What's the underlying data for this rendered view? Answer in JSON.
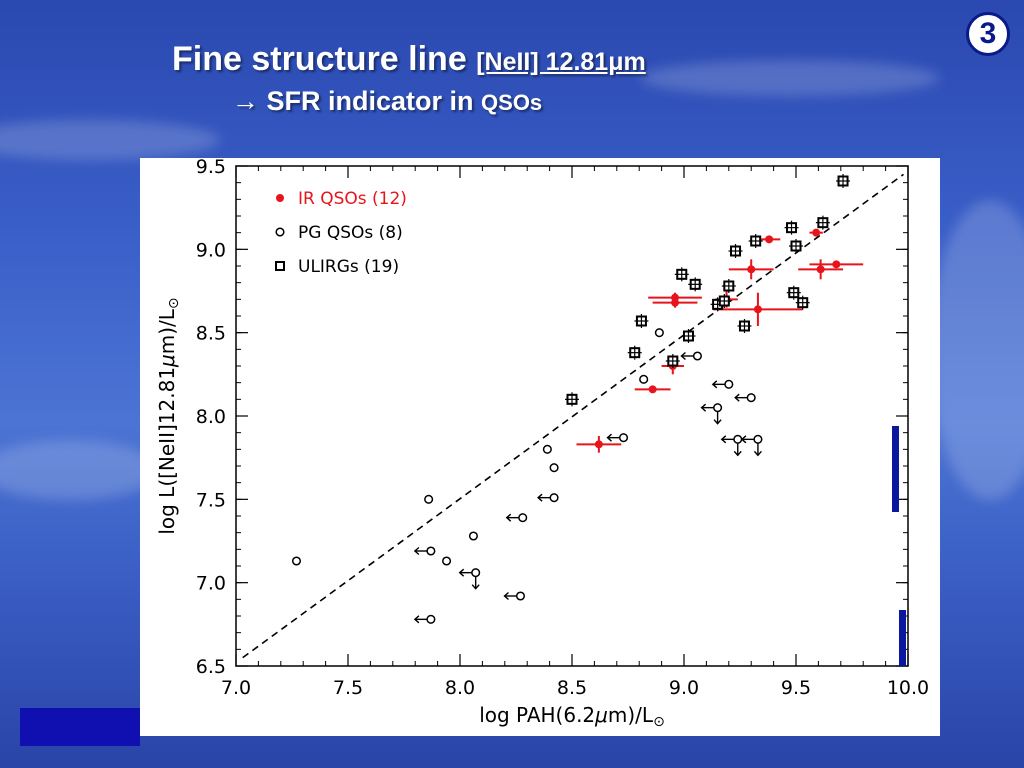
{
  "slide": {
    "title_main": "Fine structure line ",
    "title_line": "[NeII] 12.81μm",
    "subtitle_arrow": "→",
    "subtitle_text": "SFR indicator in ",
    "subtitle_qso": "QSOs",
    "badge": "3"
  },
  "colors": {
    "ir": "#e8141c",
    "pg": "#000000",
    "ulirg": "#000000",
    "marker_bar": "#0a18a0"
  },
  "chart_data": {
    "type": "scatter",
    "title": "",
    "xlabel_pre": "log PAH(6.2",
    "xlabel_mu": "μ",
    "xlabel_post": "m)/L",
    "xlabel_sun": "⊙",
    "ylabel_pre": "log L([NeII]12.81",
    "ylabel_mu": "μ",
    "ylabel_post": "m)/L",
    "ylabel_sun": "⊙",
    "xlim": [
      7.0,
      10.0
    ],
    "ylim": [
      6.5,
      9.5
    ],
    "xticks": [
      "7.0",
      "7.5",
      "8.0",
      "8.5",
      "9.0",
      "9.5",
      "10.0"
    ],
    "yticks": [
      "6.5",
      "7.0",
      "7.5",
      "8.0",
      "8.5",
      "9.0",
      "9.5"
    ],
    "legend_position": "top-left",
    "legend": [
      {
        "marker": "filled-circle",
        "label": "IR QSOs (12)",
        "color": "#e8141c"
      },
      {
        "marker": "open-circle",
        "label": "PG QSOs (8)",
        "color": "#000000"
      },
      {
        "marker": "open-square",
        "label": "ULIRGs  (19)",
        "color": "#000000"
      }
    ],
    "reference_line": {
      "style": "dashed",
      "from": [
        7.03,
        6.55
      ],
      "to": [
        9.98,
        9.45
      ]
    },
    "series": [
      {
        "name": "IR QSOs (12)",
        "marker": "filled-circle",
        "points": [
          {
            "x": 8.62,
            "y": 7.83,
            "xerr": 0.1,
            "yerr": 0.05
          },
          {
            "x": 8.86,
            "y": 8.16,
            "xerr": 0.08,
            "yerr": 0.0
          },
          {
            "x": 8.95,
            "y": 8.3,
            "xerr": 0.05,
            "yerr": 0.05
          },
          {
            "x": 8.96,
            "y": 8.68,
            "xerr": 0.1,
            "yerr": 0.03
          },
          {
            "x": 8.96,
            "y": 8.71,
            "xerr": 0.12,
            "yerr": 0.03
          },
          {
            "x": 9.19,
            "y": 8.7,
            "xerr": 0.05,
            "yerr": 0.05
          },
          {
            "x": 9.33,
            "y": 8.64,
            "xerr": 0.2,
            "yerr": 0.1
          },
          {
            "x": 9.3,
            "y": 8.88,
            "xerr": 0.1,
            "yerr": 0.06
          },
          {
            "x": 9.38,
            "y": 9.06,
            "xerr": 0.05,
            "yerr": 0.02
          },
          {
            "x": 9.59,
            "y": 9.1,
            "xerr": 0.03,
            "yerr": 0.02
          },
          {
            "x": 9.61,
            "y": 8.88,
            "xerr": 0.1,
            "yerr": 0.06
          },
          {
            "x": 9.68,
            "y": 8.91,
            "xerr": 0.12,
            "yerr": 0.0
          }
        ]
      },
      {
        "name": "PG QSOs (8)",
        "marker": "open-circle",
        "points": [
          {
            "x": 7.27,
            "y": 7.13
          },
          {
            "x": 7.86,
            "y": 7.5
          },
          {
            "x": 7.94,
            "y": 7.13
          },
          {
            "x": 8.06,
            "y": 7.28
          },
          {
            "x": 8.39,
            "y": 7.8
          },
          {
            "x": 8.42,
            "y": 7.69
          },
          {
            "x": 8.82,
            "y": 8.22
          },
          {
            "x": 8.89,
            "y": 8.5
          }
        ]
      },
      {
        "name": "PG QSOs upper limits",
        "marker": "open-circle-limit",
        "points": [
          {
            "x": 7.87,
            "y": 6.78,
            "limit": "left"
          },
          {
            "x": 7.87,
            "y": 7.19,
            "limit": "left"
          },
          {
            "x": 8.07,
            "y": 7.06,
            "limit": "left-down"
          },
          {
            "x": 8.27,
            "y": 6.92,
            "limit": "left"
          },
          {
            "x": 8.28,
            "y": 7.39,
            "limit": "left"
          },
          {
            "x": 8.42,
            "y": 7.51,
            "limit": "left"
          },
          {
            "x": 8.73,
            "y": 7.87,
            "limit": "left"
          },
          {
            "x": 9.06,
            "y": 8.36,
            "limit": "left"
          },
          {
            "x": 9.15,
            "y": 8.05,
            "limit": "left-down"
          },
          {
            "x": 9.2,
            "y": 8.19,
            "limit": "left"
          },
          {
            "x": 9.3,
            "y": 8.11,
            "limit": "left"
          },
          {
            "x": 9.24,
            "y": 7.86,
            "limit": "left-down"
          },
          {
            "x": 9.33,
            "y": 7.86,
            "limit": "left-down"
          }
        ]
      },
      {
        "name": "ULIRGs  (19)",
        "marker": "open-square",
        "points": [
          {
            "x": 8.5,
            "y": 8.1
          },
          {
            "x": 8.78,
            "y": 8.38
          },
          {
            "x": 8.81,
            "y": 8.57
          },
          {
            "x": 8.95,
            "y": 8.33
          },
          {
            "x": 8.99,
            "y": 8.85
          },
          {
            "x": 9.02,
            "y": 8.48
          },
          {
            "x": 9.05,
            "y": 8.79
          },
          {
            "x": 9.15,
            "y": 8.67
          },
          {
            "x": 9.18,
            "y": 8.69
          },
          {
            "x": 9.2,
            "y": 8.78
          },
          {
            "x": 9.23,
            "y": 8.99
          },
          {
            "x": 9.27,
            "y": 8.54
          },
          {
            "x": 9.32,
            "y": 9.05
          },
          {
            "x": 9.48,
            "y": 9.13
          },
          {
            "x": 9.49,
            "y": 8.74
          },
          {
            "x": 9.5,
            "y": 9.02
          },
          {
            "x": 9.53,
            "y": 8.68
          },
          {
            "x": 9.62,
            "y": 9.16
          },
          {
            "x": 9.71,
            "y": 9.41
          }
        ]
      }
    ]
  }
}
